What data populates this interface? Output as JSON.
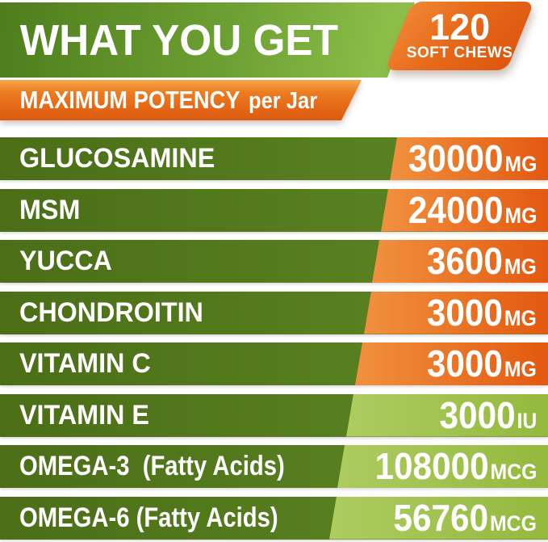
{
  "header": {
    "title": "WHAT YOU GET",
    "badge_count": "120",
    "badge_label": "SOFT CHEWS",
    "potency_strong": "MAXIMUM POTENCY",
    "potency_rest": "per Jar"
  },
  "chart_data": {
    "type": "table",
    "title": "WHAT YOU GET",
    "subtitle": "MAXIMUM POTENCY per Jar",
    "badge": "120 SOFT CHEWS",
    "rows": [
      {
        "label": "GLUCOSAMINE",
        "value": "30000",
        "unit": "MG",
        "theme": "orange"
      },
      {
        "label": "MSM",
        "value": "24000",
        "unit": "MG",
        "theme": "orange"
      },
      {
        "label": "YUCCA",
        "value": "3600",
        "unit": "MG",
        "theme": "orange"
      },
      {
        "label": "CHONDROITIN",
        "value": "3000",
        "unit": "MG",
        "theme": "orange"
      },
      {
        "label": "VITAMIN C",
        "value": "3000",
        "unit": "MG",
        "theme": "orange"
      },
      {
        "label": "VITAMIN E",
        "value": "3000",
        "unit": "IU",
        "theme": "light-green"
      },
      {
        "label": "OMEGA-3  (Fatty Acids)",
        "value": "108000",
        "unit": "MCG",
        "theme": "light-green"
      },
      {
        "label": "OMEGA-6 (Fatty Acids)",
        "value": "56760",
        "unit": "MCG",
        "theme": "light-green"
      }
    ]
  },
  "colors": {
    "header_green_dark": "#4e7d1c",
    "header_green_light": "#92c44e",
    "row_green_dark": "#4b6e17",
    "row_green_light": "#5e8824",
    "amount_orange_light": "#f0913f",
    "amount_orange_dark": "#e3590f",
    "amount_lime_light": "#adcc61",
    "amount_lime_dark": "#94b93d",
    "banner_orange": "#ec7a21",
    "badge_orange": "#e66a1a",
    "text": "#ffffff"
  }
}
